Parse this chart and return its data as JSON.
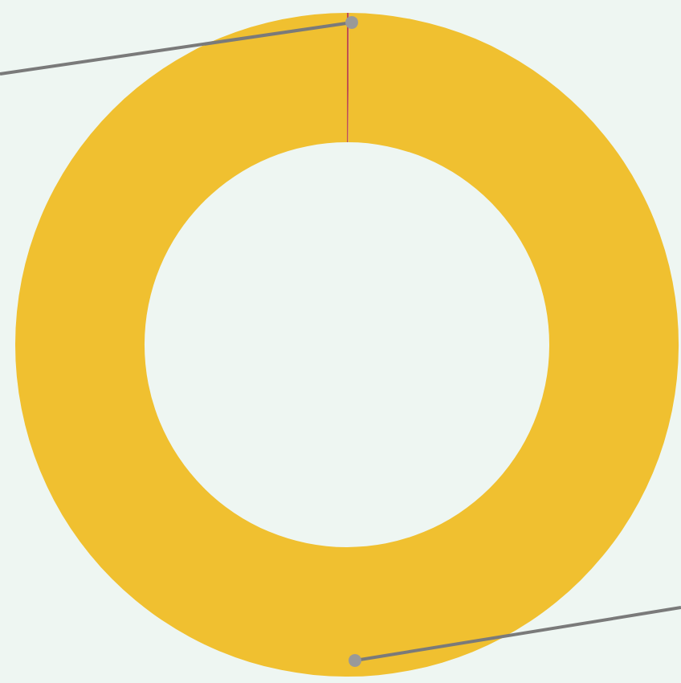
{
  "chart_data": {
    "type": "donut",
    "categories": [
      null,
      null
    ],
    "values": [
      0.1,
      99.9
    ],
    "colors": [
      "#c0504d",
      "#f0c030"
    ]
  }
}
